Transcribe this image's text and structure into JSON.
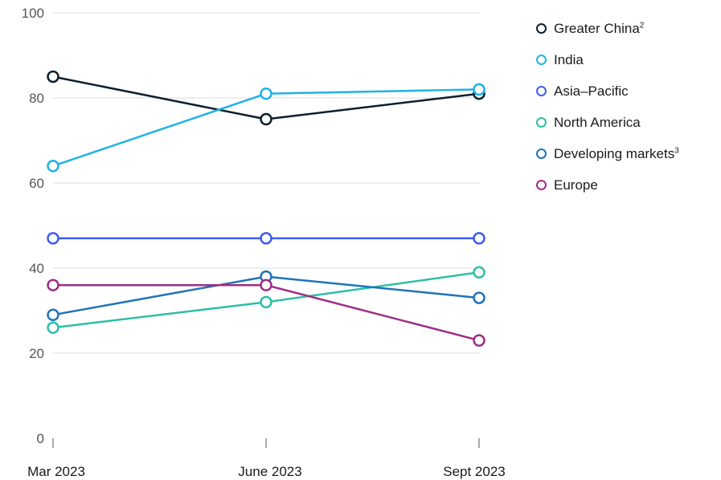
{
  "chart_data": {
    "type": "line",
    "categories": [
      "Mar 2023",
      "June 2023",
      "Sept 2023"
    ],
    "ylim": [
      0,
      100
    ],
    "yticks": [
      0,
      20,
      40,
      60,
      80,
      100
    ],
    "grid": true,
    "legend_position": "top-right",
    "series": [
      {
        "name": "Greater China",
        "footnote": "2",
        "color": "#0b1f2e",
        "values": [
          85,
          75,
          81
        ]
      },
      {
        "name": "India",
        "footnote": "",
        "color": "#1fb2e8",
        "values": [
          64,
          81,
          82
        ]
      },
      {
        "name": "Asia–Pacific",
        "footnote": "",
        "color": "#3c5cf0",
        "values": [
          47,
          47,
          47
        ]
      },
      {
        "name": "North America",
        "footnote": "",
        "color": "#2cbfa8",
        "values": [
          26,
          32,
          39
        ]
      },
      {
        "name": "Developing markets",
        "footnote": "3",
        "color": "#1f74b8",
        "values": [
          29,
          38,
          33
        ]
      },
      {
        "name": "Europe",
        "footnote": "",
        "color": "#9c2f86",
        "values": [
          36,
          36,
          23
        ]
      }
    ]
  }
}
